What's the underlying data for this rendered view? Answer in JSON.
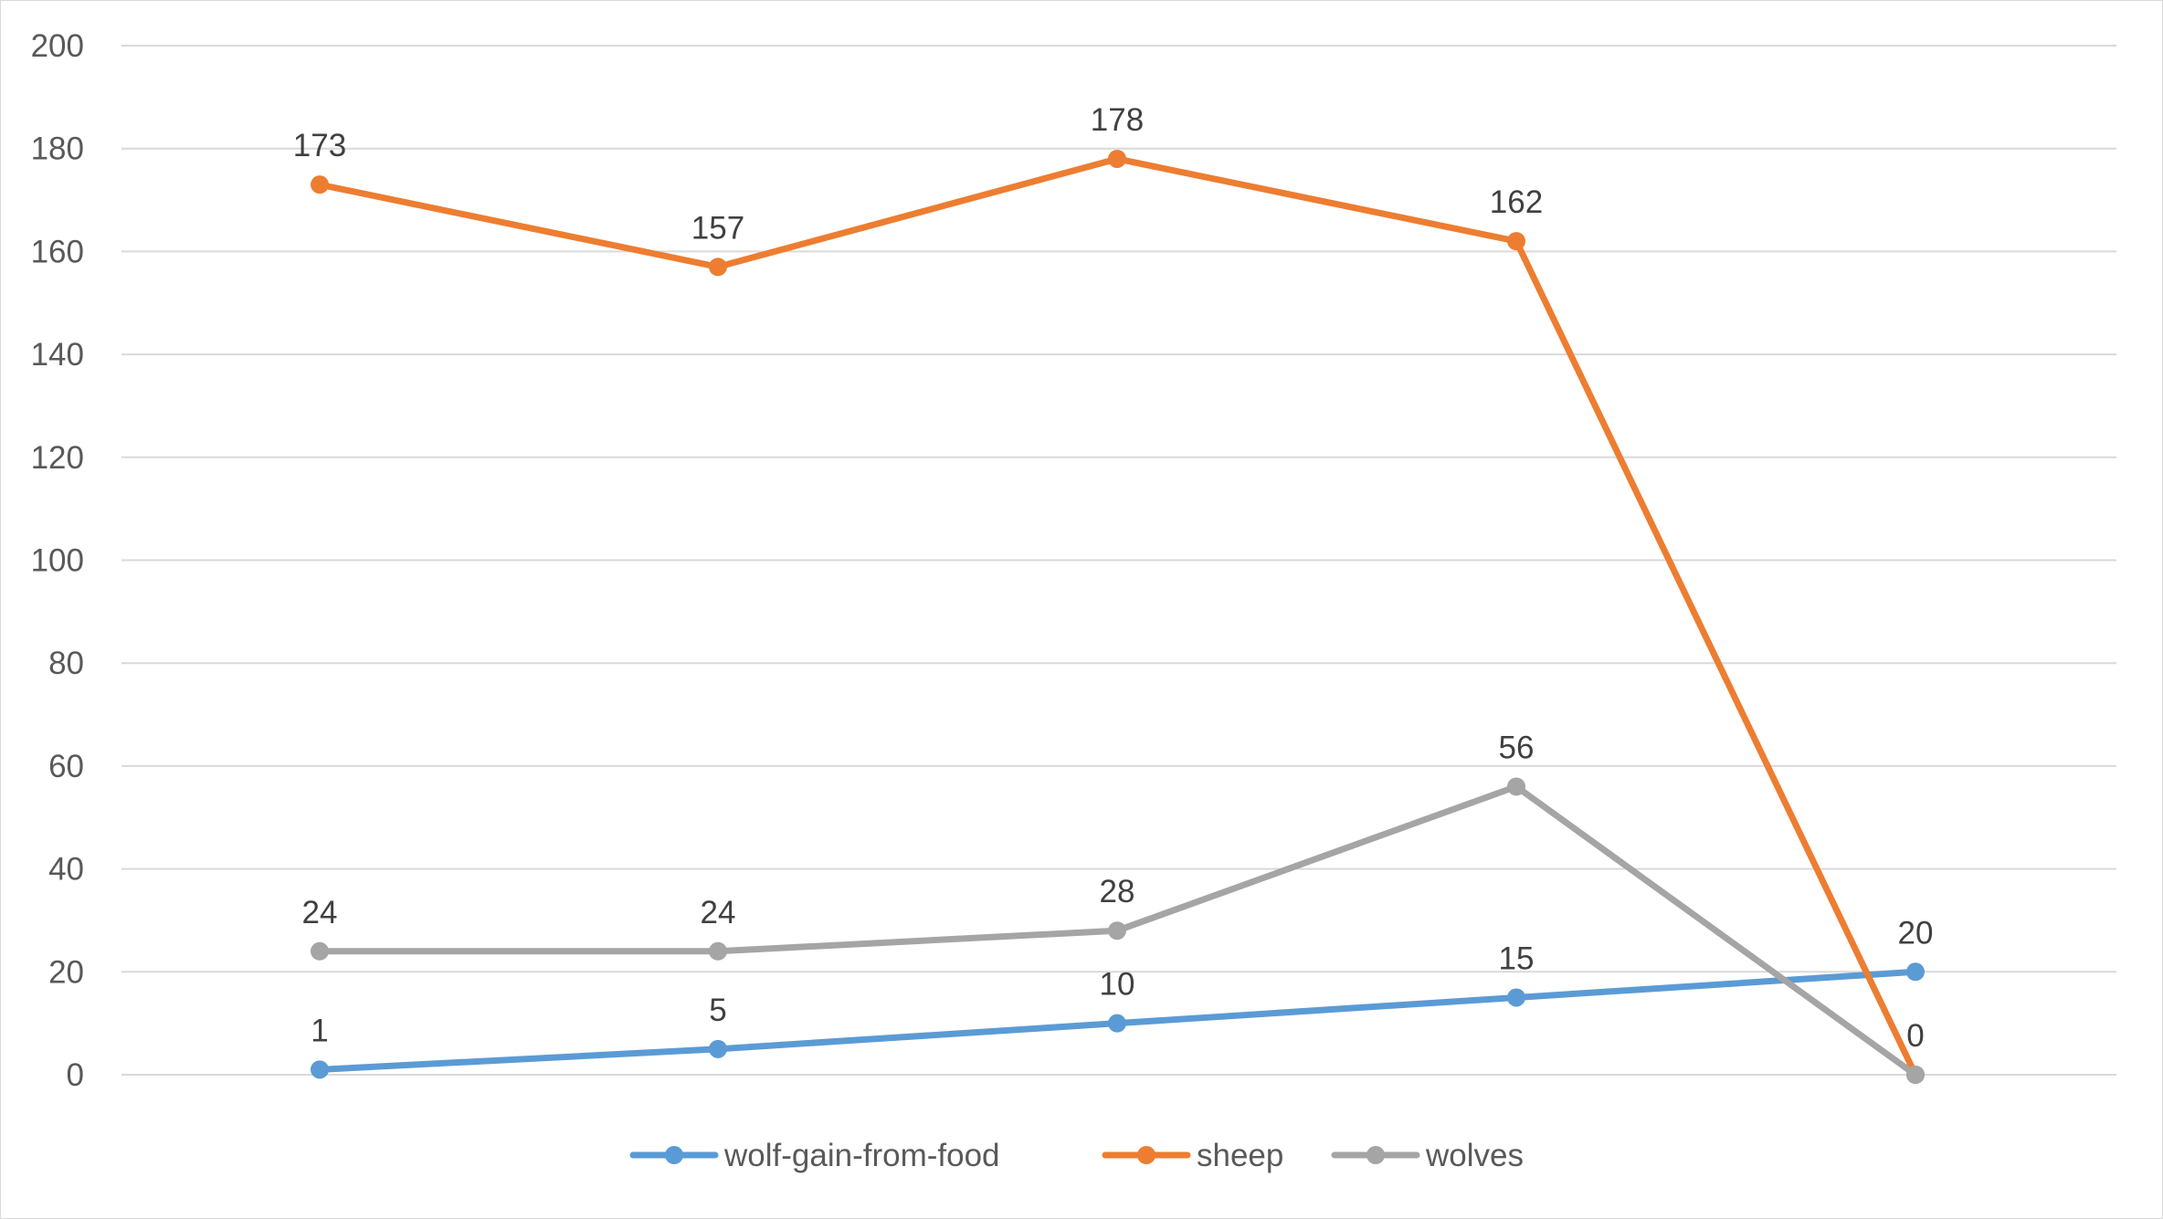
{
  "chart_data": {
    "type": "line",
    "title": "",
    "xlabel": "",
    "ylabel": "",
    "categories": [
      "",
      "",
      "",
      "",
      ""
    ],
    "ylim": [
      0,
      200
    ],
    "yticks": [
      0,
      20,
      40,
      60,
      80,
      100,
      120,
      140,
      160,
      180,
      200
    ],
    "grid": true,
    "legend_position": "bottom",
    "series": [
      {
        "name": "wolf-gain-from-food",
        "color": "#5B9BD5",
        "values": [
          1,
          5,
          10,
          15,
          20
        ],
        "labels": [
          "1",
          "5",
          "10",
          "15",
          "20"
        ]
      },
      {
        "name": "sheep",
        "color": "#ED7D31",
        "values": [
          173,
          157,
          178,
          162,
          0
        ],
        "labels": [
          "173",
          "157",
          "178",
          "162",
          ""
        ]
      },
      {
        "name": "wolves",
        "color": "#A5A5A5",
        "values": [
          24,
          24,
          28,
          56,
          0
        ],
        "labels": [
          "24",
          "24",
          "28",
          "56",
          "0"
        ]
      }
    ]
  }
}
